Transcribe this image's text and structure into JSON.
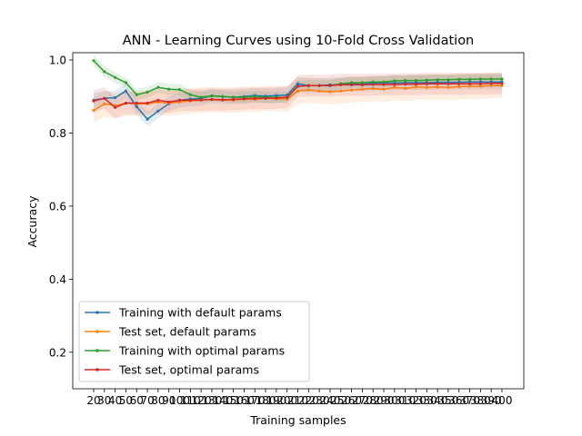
{
  "chart_data": {
    "type": "line",
    "title": "ANN - Learning Curves using 10-Fold Cross Validation",
    "xlabel": "Training samples",
    "ylabel": "Accuracy",
    "ylim": [
      0.1,
      1.02
    ],
    "yticks": [
      "0.2",
      "0.4",
      "0.6",
      "0.8",
      "1.0"
    ],
    "ytick_values": [
      0.2,
      0.4,
      0.6,
      0.8,
      1.0
    ],
    "x": [
      20,
      30,
      40,
      50,
      60,
      70,
      80,
      90,
      100,
      110,
      120,
      130,
      140,
      150,
      160,
      170,
      180,
      190,
      200,
      210,
      220,
      230,
      240,
      250,
      260,
      270,
      280,
      290,
      300,
      310,
      320,
      330,
      340,
      350,
      360,
      370,
      380,
      390,
      400
    ],
    "grid": false,
    "legend_position": "lower-left",
    "series": [
      {
        "name": "Training with default params",
        "color": "#1f77b4",
        "values": [
          0.89,
          0.895,
          0.897,
          0.915,
          0.872,
          0.838,
          0.86,
          0.88,
          0.89,
          0.893,
          0.895,
          0.902,
          0.9,
          0.898,
          0.9,
          0.903,
          0.901,
          0.903,
          0.904,
          0.935,
          0.93,
          0.93,
          0.932,
          0.933,
          0.935,
          0.934,
          0.936,
          0.937,
          0.937,
          0.938,
          0.938,
          0.938,
          0.939,
          0.939,
          0.939,
          0.94,
          0.94,
          0.94,
          0.94
        ],
        "band": 0.02
      },
      {
        "name": "Test set, default params",
        "color": "#ff7f0e",
        "values": [
          0.862,
          0.88,
          0.875,
          0.882,
          0.88,
          0.88,
          0.885,
          0.882,
          0.885,
          0.888,
          0.89,
          0.892,
          0.89,
          0.89,
          0.893,
          0.892,
          0.895,
          0.894,
          0.893,
          0.915,
          0.918,
          0.915,
          0.913,
          0.915,
          0.918,
          0.92,
          0.922,
          0.92,
          0.925,
          0.922,
          0.926,
          0.925,
          0.926,
          0.925,
          0.927,
          0.928,
          0.928,
          0.93,
          0.93
        ],
        "band": 0.035
      },
      {
        "name": "Training with optimal params",
        "color": "#2ca02c",
        "values": [
          0.998,
          0.968,
          0.952,
          0.938,
          0.905,
          0.912,
          0.925,
          0.92,
          0.919,
          0.905,
          0.898,
          0.902,
          0.9,
          0.898,
          0.898,
          0.9,
          0.898,
          0.898,
          0.897,
          0.928,
          0.93,
          0.93,
          0.93,
          0.935,
          0.938,
          0.938,
          0.94,
          0.94,
          0.943,
          0.944,
          0.944,
          0.945,
          0.946,
          0.946,
          0.947,
          0.947,
          0.948,
          0.948,
          0.948
        ],
        "band": 0.015
      },
      {
        "name": "Test set, optimal params",
        "color": "#d62728",
        "values": [
          0.888,
          0.895,
          0.87,
          0.882,
          0.882,
          0.882,
          0.89,
          0.885,
          0.89,
          0.89,
          0.891,
          0.892,
          0.891,
          0.892,
          0.894,
          0.895,
          0.895,
          0.896,
          0.898,
          0.928,
          0.93,
          0.93,
          0.93,
          0.932,
          0.932,
          0.932,
          0.933,
          0.933,
          0.933,
          0.934,
          0.934,
          0.935,
          0.935,
          0.935,
          0.935,
          0.935,
          0.935,
          0.936,
          0.936
        ],
        "band": 0.03
      }
    ]
  }
}
